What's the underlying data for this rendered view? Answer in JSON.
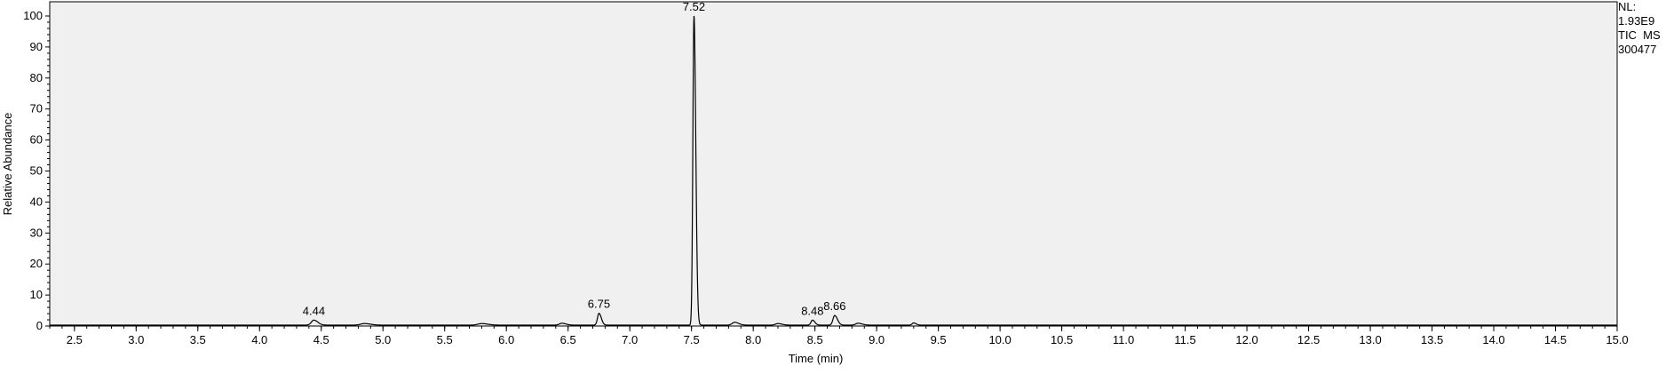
{
  "info": {
    "nl_label": "NL:",
    "nl_value": "1.93E9",
    "scan_filter": "TIC  MS",
    "file_name": "300477"
  },
  "chart_data": {
    "type": "line",
    "title": "",
    "xlabel": "Time (min)",
    "ylabel": "Relative Abundance",
    "xlim": [
      2.3,
      15.0
    ],
    "ylim": [
      0,
      100
    ],
    "grid": false,
    "background": "#f0f0f0",
    "line_color": "#000000",
    "x_ticks": [
      "2.5",
      "3.0",
      "3.5",
      "4.0",
      "4.5",
      "5.0",
      "5.5",
      "6.0",
      "6.5",
      "7.0",
      "7.5",
      "8.0",
      "8.5",
      "9.0",
      "9.5",
      "10.0",
      "10.5",
      "11.0",
      "11.5",
      "12.0",
      "12.5",
      "13.0",
      "13.5",
      "14.0",
      "14.5",
      "15.0"
    ],
    "y_ticks": [
      "0",
      "10",
      "20",
      "30",
      "40",
      "50",
      "60",
      "70",
      "80",
      "90",
      "100"
    ],
    "baseline": 0.3,
    "peaks": [
      {
        "rt": 4.44,
        "height": 1.6,
        "width": 0.02,
        "label": "4.44"
      },
      {
        "rt": 4.85,
        "height": 0.5,
        "width": 0.03,
        "label": ""
      },
      {
        "rt": 5.8,
        "height": 0.5,
        "width": 0.03,
        "label": ""
      },
      {
        "rt": 6.45,
        "height": 0.6,
        "width": 0.02,
        "label": ""
      },
      {
        "rt": 6.75,
        "height": 3.8,
        "width": 0.012,
        "label": "6.75"
      },
      {
        "rt": 7.52,
        "height": 100,
        "width": 0.009,
        "label": "7.52"
      },
      {
        "rt": 7.85,
        "height": 0.9,
        "width": 0.02,
        "label": ""
      },
      {
        "rt": 8.2,
        "height": 0.5,
        "width": 0.02,
        "label": ""
      },
      {
        "rt": 8.48,
        "height": 1.6,
        "width": 0.012,
        "label": "8.48"
      },
      {
        "rt": 8.66,
        "height": 3.1,
        "width": 0.014,
        "label": "8.66"
      },
      {
        "rt": 8.85,
        "height": 0.6,
        "width": 0.02,
        "label": ""
      },
      {
        "rt": 9.3,
        "height": 0.7,
        "width": 0.012,
        "label": ""
      }
    ]
  }
}
